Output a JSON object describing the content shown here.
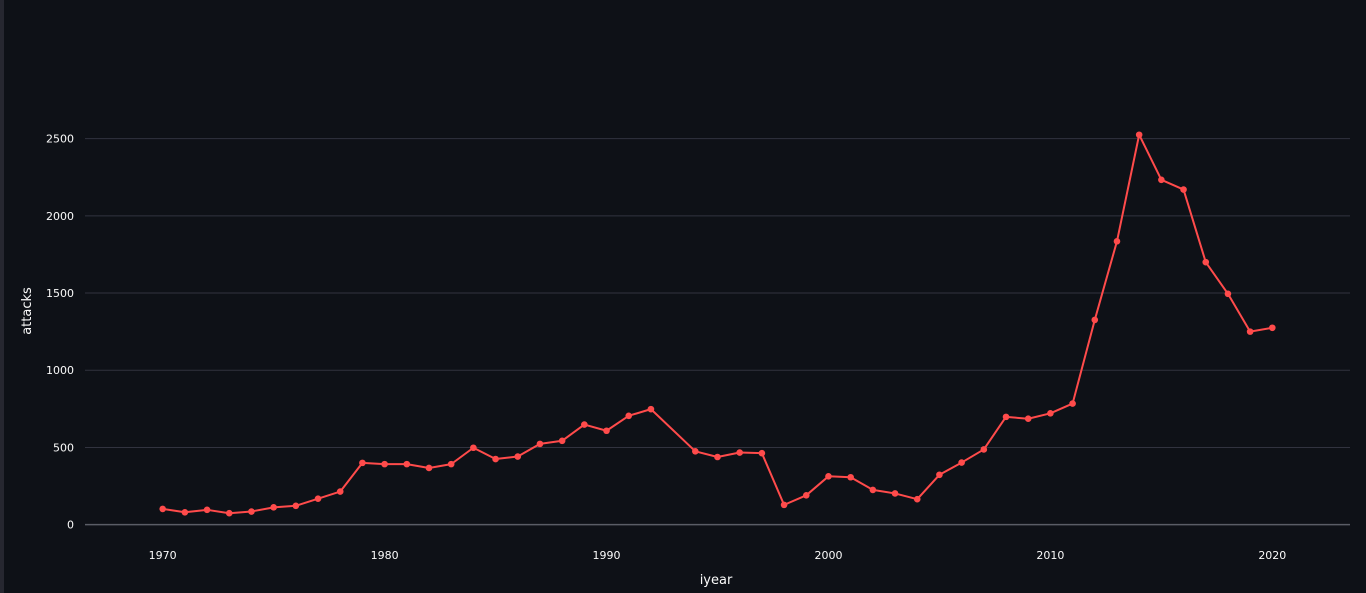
{
  "chart_data": {
    "type": "line",
    "xlabel": "iyear",
    "ylabel": "attacks",
    "xlim": [
      1966.5,
      2023.5
    ],
    "ylim": [
      -80,
      2750
    ],
    "xticks": [
      1970,
      1980,
      1990,
      2000,
      2010,
      2020
    ],
    "yticks": [
      0,
      500,
      1000,
      1500,
      2000,
      2500
    ],
    "grid": "horizontal",
    "line_color": "#ff4b4b",
    "background": "#0e1117",
    "grid_color": "#31333f",
    "text_color": "#fafafa",
    "x": [
      1970,
      1971,
      1972,
      1973,
      1974,
      1975,
      1976,
      1977,
      1978,
      1979,
      1980,
      1981,
      1982,
      1983,
      1984,
      1985,
      1986,
      1987,
      1988,
      1989,
      1990,
      1991,
      1992,
      1994,
      1995,
      1996,
      1997,
      1998,
      1999,
      2000,
      2001,
      2002,
      2003,
      2004,
      2005,
      2006,
      2007,
      2008,
      2009,
      2010,
      2011,
      2012,
      2013,
      2014,
      2015,
      2016,
      2017,
      2018,
      2019,
      2020
    ],
    "y": [
      102,
      80,
      96,
      74,
      85,
      112,
      122,
      168,
      214,
      400,
      392,
      392,
      367,
      392,
      498,
      425,
      441,
      523,
      543,
      648,
      608,
      705,
      748,
      475,
      438,
      467,
      463,
      128,
      190,
      313,
      307,
      225,
      202,
      165,
      323,
      402,
      487,
      698,
      686,
      721,
      784,
      1326,
      1835,
      2525,
      2233,
      2170,
      1700,
      1495,
      1250,
      1275
    ]
  }
}
